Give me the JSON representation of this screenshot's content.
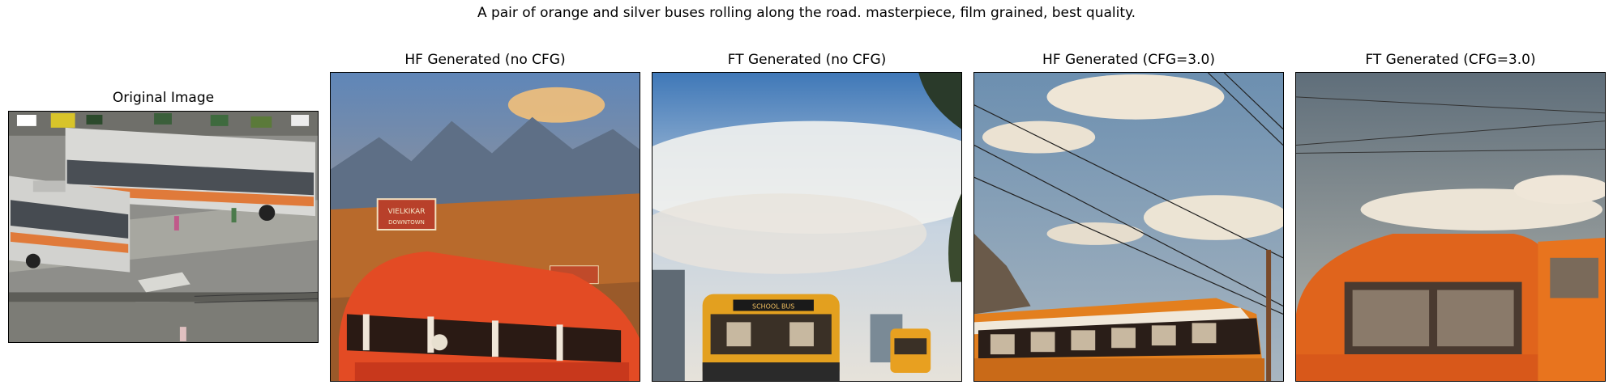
{
  "figure": {
    "suptitle": "A pair of orange and silver buses rolling along the road. masterpiece, film grained, best quality."
  },
  "panels": [
    {
      "title": "Original Image"
    },
    {
      "title": "HF Generated (no CFG)"
    },
    {
      "title": "FT Generated (no CFG)"
    },
    {
      "title": "HF Generated (CFG=3.0)"
    },
    {
      "title": "FT Generated (CFG=3.0)"
    }
  ],
  "signs": {
    "billboard": "VIELKIKAR",
    "billboard_sub": "DOWNTOWN",
    "bus_destination": "SCHOOL BUS"
  }
}
